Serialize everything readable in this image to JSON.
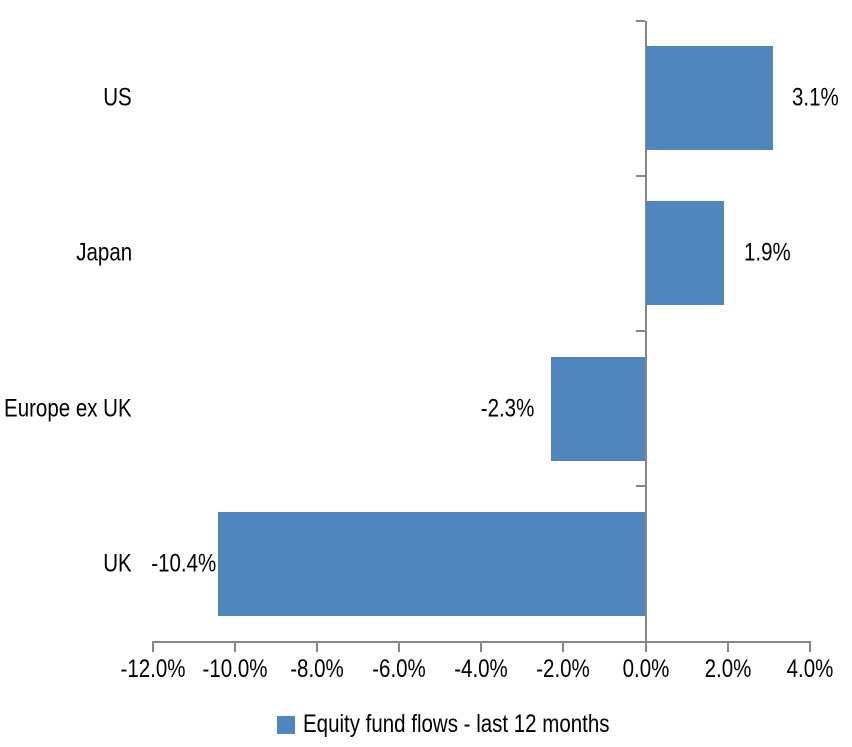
{
  "chart_data": {
    "type": "bar",
    "orientation": "horizontal",
    "title": "",
    "categories": [
      "US",
      "Japan",
      "Europe ex UK",
      "UK"
    ],
    "series": [
      {
        "name": "Equity fund flows - last 12 months",
        "values": [
          3.1,
          1.9,
          -2.3,
          -10.4
        ]
      }
    ],
    "data_labels": [
      "3.1%",
      "1.9%",
      "-2.3%",
      "-10.4%"
    ],
    "x_axis": {
      "tick_values": [
        -12,
        -10,
        -8,
        -6,
        -4,
        -2,
        0,
        2,
        4
      ],
      "tick_labels": [
        "-12.0%",
        "-10.0%",
        "-8.0%",
        "-6.0%",
        "-4.0%",
        "-2.0%",
        "0.0%",
        "2.0%",
        "4.0%"
      ],
      "range": [
        -12,
        4
      ],
      "unit": "percent"
    },
    "legend": {
      "label": "Equity fund flows - last 12 months",
      "position": "bottom",
      "marker": "square"
    },
    "grid": false,
    "colors": {
      "bar": "#4E86BD",
      "axis": "#878787",
      "text": "#000000",
      "background": "#FFFFFF"
    }
  }
}
